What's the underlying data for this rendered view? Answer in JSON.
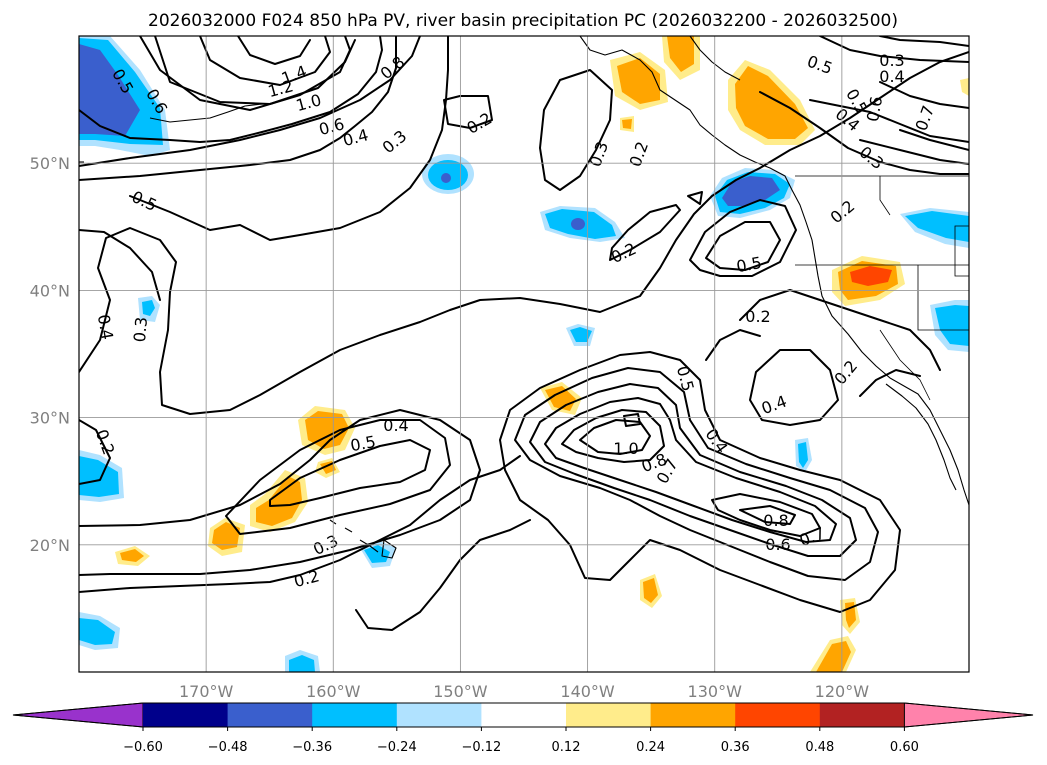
{
  "title": "2026032000 F024 850 hPa PV, river basin precipitation PC (2026032200 - 2026032500)",
  "map": {
    "lon_range": [
      -180,
      -110
    ],
    "lat_range": [
      10,
      60
    ],
    "lat_ticks": [
      {
        "value": 50,
        "label": "50°N"
      },
      {
        "value": 40,
        "label": "40°N"
      },
      {
        "value": 30,
        "label": "30°N"
      },
      {
        "value": 20,
        "label": "20°N"
      }
    ],
    "lon_ticks": [
      {
        "value": -170,
        "label": "170°W"
      },
      {
        "value": -160,
        "label": "160°W"
      },
      {
        "value": -150,
        "label": "150°W"
      },
      {
        "value": -140,
        "label": "140°W"
      },
      {
        "value": -130,
        "label": "130°W"
      },
      {
        "value": -120,
        "label": "120°W"
      }
    ]
  },
  "contour_labels": [
    {
      "text": "0.5"
    },
    {
      "text": "0.6"
    },
    {
      "text": "1.4"
    },
    {
      "text": "1.2"
    },
    {
      "text": "1.0"
    },
    {
      "text": "0.8"
    },
    {
      "text": "0.6"
    },
    {
      "text": "0.4"
    },
    {
      "text": "0.3"
    },
    {
      "text": "0.5"
    },
    {
      "text": "0.2"
    },
    {
      "text": "0.3"
    },
    {
      "text": "0.2"
    },
    {
      "text": "0.5"
    },
    {
      "text": "0.3"
    },
    {
      "text": "0.4"
    },
    {
      "text": "0.5"
    },
    {
      "text": "0.6"
    },
    {
      "text": "0.4"
    },
    {
      "text": "0.7"
    },
    {
      "text": "0.3"
    },
    {
      "text": "0.2"
    },
    {
      "text": "0.2"
    },
    {
      "text": "0.5"
    },
    {
      "text": "0.2"
    },
    {
      "text": "0.4"
    },
    {
      "text": "0.3"
    },
    {
      "text": "0.2"
    },
    {
      "text": "0.2"
    },
    {
      "text": "0.4"
    },
    {
      "text": "0.5"
    },
    {
      "text": "0.3"
    },
    {
      "text": "0.2"
    },
    {
      "text": "0.5"
    },
    {
      "text": "1.0"
    },
    {
      "text": "0.4"
    },
    {
      "text": "0.8"
    },
    {
      "text": "0.7"
    },
    {
      "text": "0.8"
    },
    {
      "text": "0.6"
    },
    {
      "text": "0.7"
    },
    {
      "text": "0.4"
    }
  ],
  "colorbar": {
    "levels": [
      "−0.60",
      "−0.48",
      "−0.36",
      "−0.24",
      "−0.12",
      "0.12",
      "0.24",
      "0.36",
      "0.48",
      "0.60"
    ],
    "colors": [
      "#9932cc",
      "#00008b",
      "#3a5fcd",
      "#00bfff",
      "#b0e2ff",
      "#ffffff",
      "#ffec8b",
      "#ffa500",
      "#ff4500",
      "#b22222",
      "#ff82ab"
    ]
  }
}
